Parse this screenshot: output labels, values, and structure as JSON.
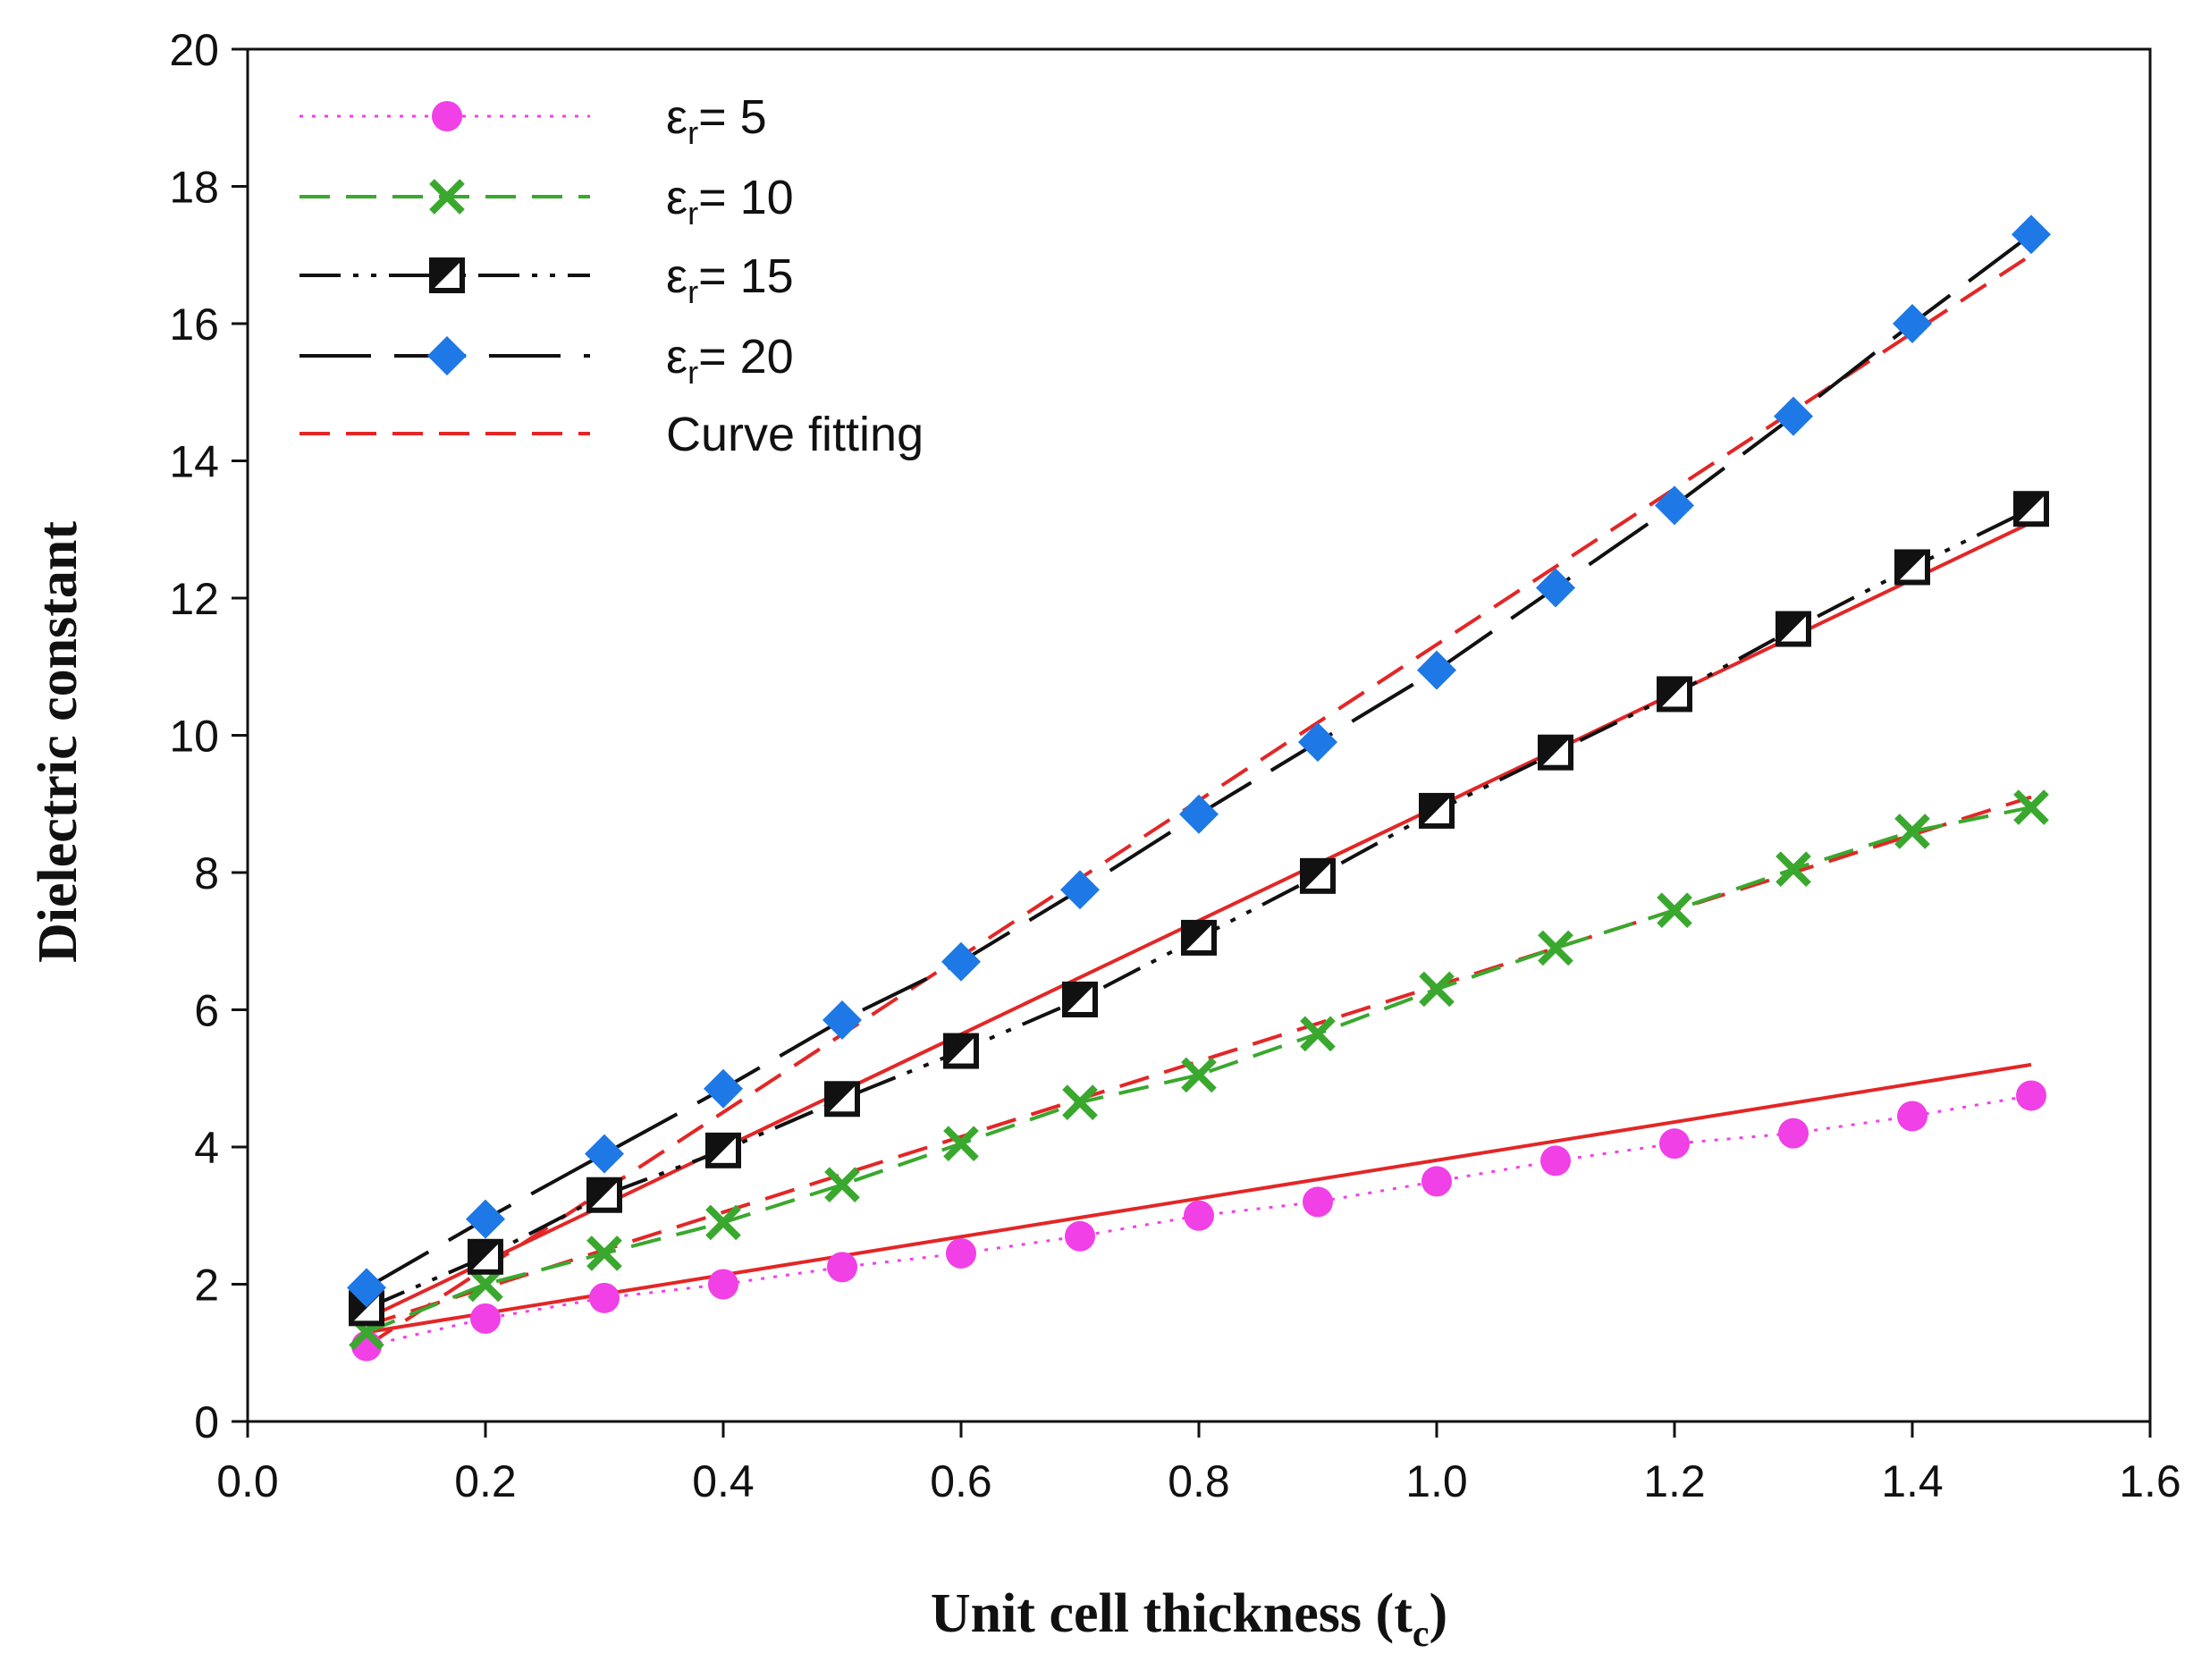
{
  "chart_data": {
    "type": "line",
    "title": "",
    "xlabel": "Unit cell thickness (t",
    "xlabel_sub": "c",
    "xlabel_end": ")",
    "ylabel": "Dielectric constant",
    "xlim": [
      0.0,
      1.6
    ],
    "ylim": [
      0,
      20
    ],
    "xticks": [
      "0.0",
      "0.2",
      "0.4",
      "0.6",
      "0.8",
      "1.0",
      "1.2",
      "1.4",
      "1.6"
    ],
    "yticks": [
      "0",
      "2",
      "4",
      "6",
      "8",
      "10",
      "12",
      "14",
      "16",
      "18",
      "20"
    ],
    "x": [
      0.1,
      0.2,
      0.3,
      0.4,
      0.5,
      0.6,
      0.7,
      0.8,
      0.9,
      1.0,
      1.1,
      1.2,
      1.3,
      1.4,
      1.5
    ],
    "series": [
      {
        "name": "εr= 5",
        "label_symbol": "ε",
        "label_sub": "r",
        "label_rest": "= 5",
        "color": "#f040e6",
        "marker": "circle",
        "line_style": "dotted",
        "values": [
          1.1,
          1.5,
          1.8,
          2.0,
          2.25,
          2.45,
          2.7,
          3.0,
          3.2,
          3.5,
          3.8,
          4.05,
          4.2,
          4.45,
          4.75
        ]
      },
      {
        "name": "εr= 10",
        "label_symbol": "ε",
        "label_sub": "r",
        "label_rest": "= 10",
        "color": "#3aa82e",
        "marker": "x",
        "line_style": "dashed",
        "values": [
          1.3,
          2.0,
          2.45,
          2.9,
          3.45,
          4.05,
          4.65,
          5.05,
          5.65,
          6.3,
          6.9,
          7.45,
          8.05,
          8.6,
          8.95
        ]
      },
      {
        "name": "εr= 15",
        "label_symbol": "ε",
        "label_sub": "r",
        "label_rest": "= 15",
        "color": "#111111",
        "marker": "square",
        "line_style": "dashdotdot",
        "values": [
          1.65,
          2.4,
          3.3,
          3.95,
          4.7,
          5.4,
          6.15,
          7.05,
          7.95,
          8.9,
          9.75,
          10.6,
          11.55,
          12.45,
          13.3
        ]
      },
      {
        "name": "εr= 20",
        "label_symbol": "ε",
        "label_sub": "r",
        "label_rest": "= 20",
        "color": "#1e78e6",
        "line_color": "#111111",
        "marker": "diamond",
        "line_style": "longdash",
        "values": [
          1.95,
          2.95,
          3.9,
          4.85,
          5.85,
          6.7,
          7.75,
          8.85,
          9.9,
          10.95,
          12.15,
          13.35,
          14.65,
          16.0,
          17.3
        ]
      }
    ],
    "fits": [
      {
        "name": "fit-er5",
        "style": "solid",
        "color": "#e32626",
        "x": [
          0.1,
          1.5
        ],
        "values": [
          1.3,
          5.2
        ]
      },
      {
        "name": "fit-er10",
        "style": "dashed",
        "color": "#e32626",
        "x": [
          0.1,
          1.5
        ],
        "values": [
          1.4,
          9.1
        ]
      },
      {
        "name": "fit-er15",
        "style": "solid",
        "color": "#e32626",
        "x": [
          0.1,
          1.5
        ],
        "values": [
          1.5,
          13.1
        ]
      },
      {
        "name": "fit-er20",
        "style": "dashed",
        "color": "#e32626",
        "x": [
          0.1,
          1.5
        ],
        "values": [
          1.1,
          17.0
        ]
      }
    ],
    "fit_legend_label": "Curve fitting",
    "fit_legend_color": "#e32626",
    "legend_position": "top-left"
  }
}
